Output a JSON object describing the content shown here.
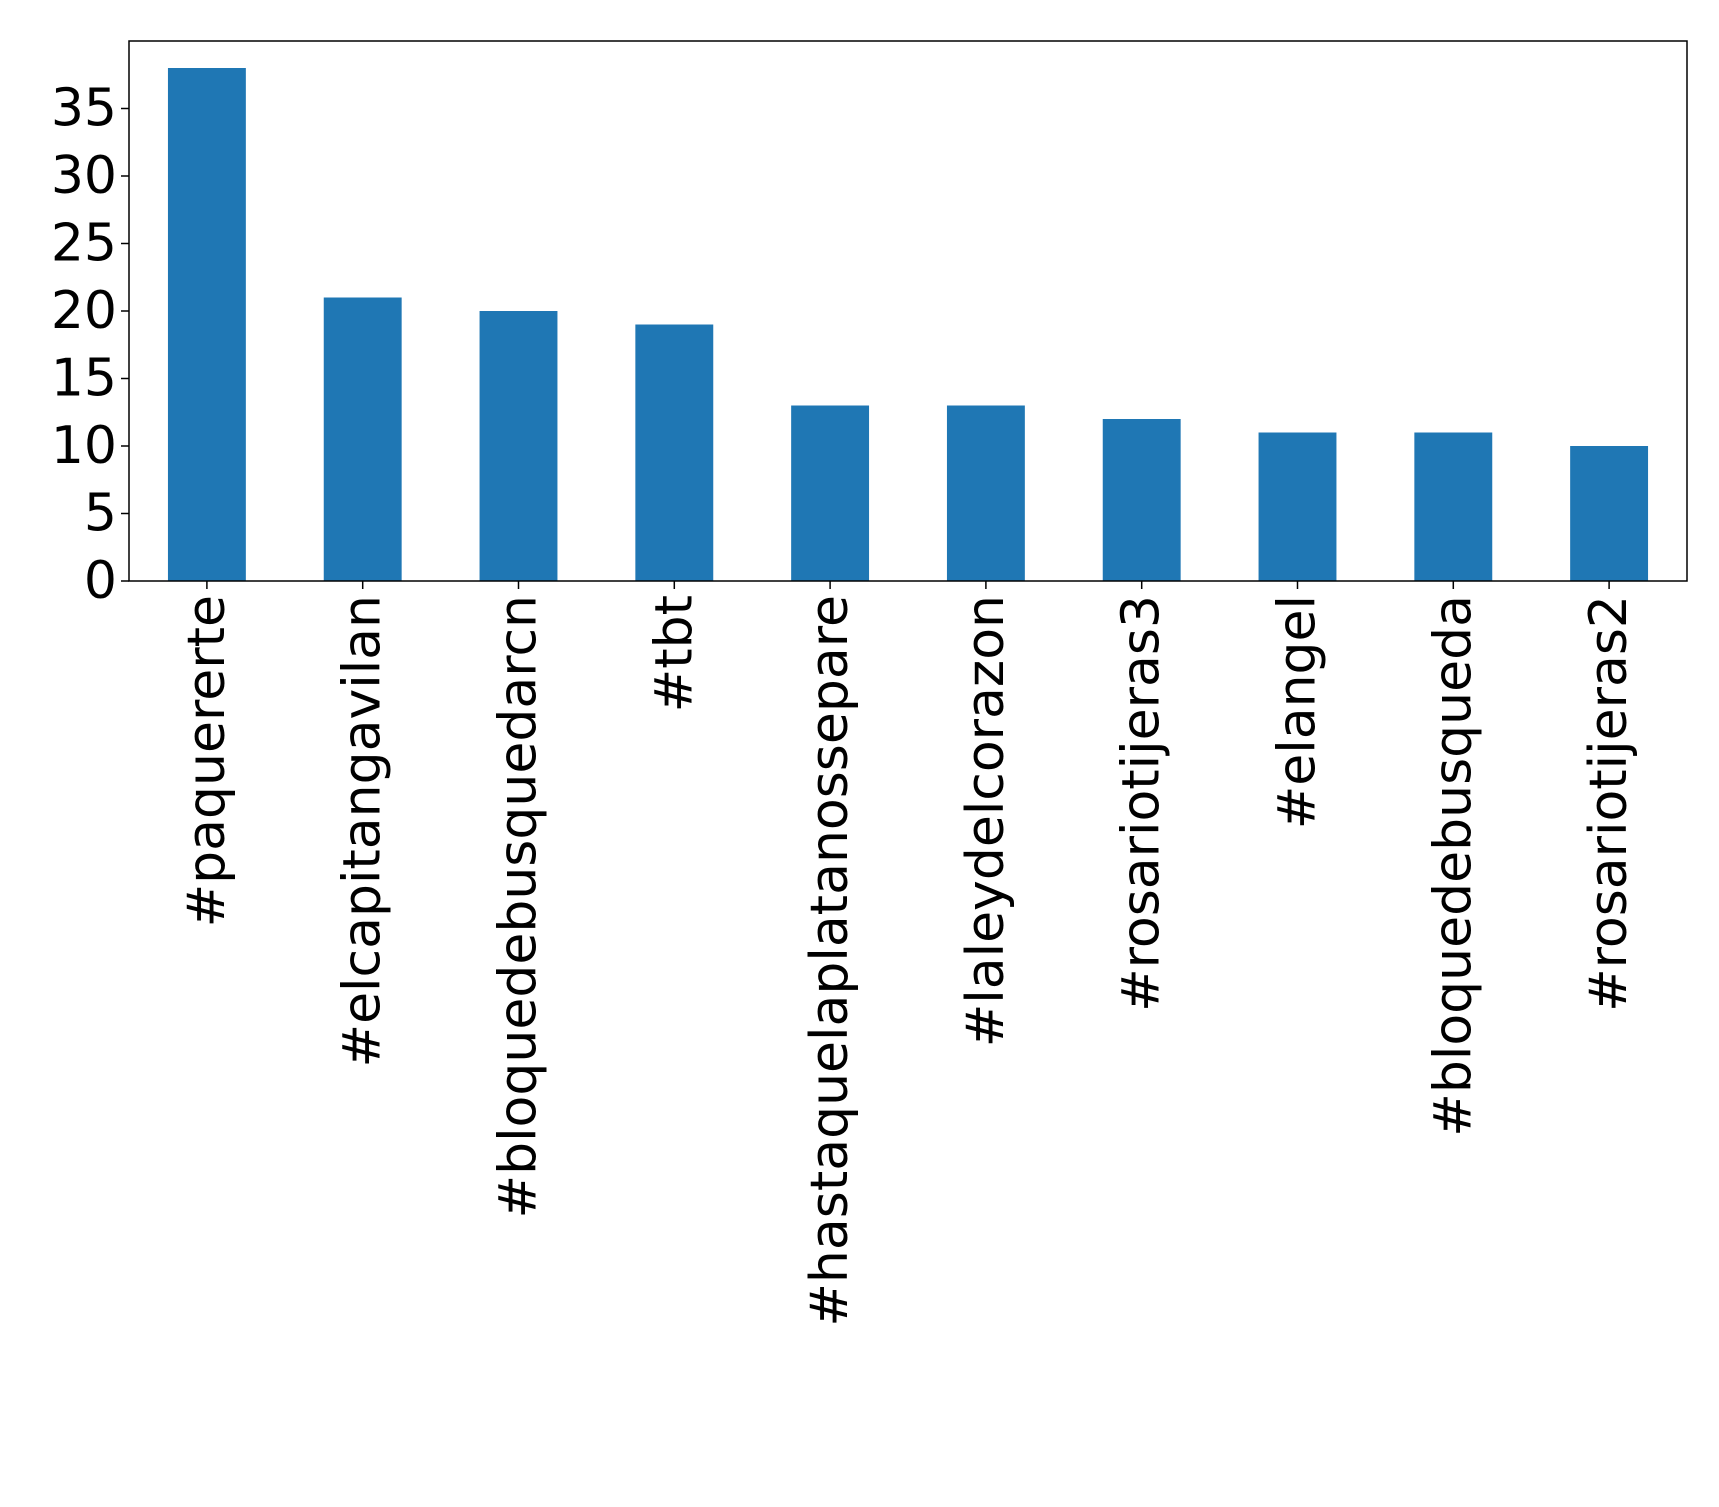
{
  "chart_data": {
    "type": "bar",
    "title": "",
    "xlabel": "",
    "ylabel": "",
    "categories": [
      "#paquererte",
      "#elcapitangavilan",
      "#bloquedebusquedarcn",
      "#tbt",
      "#hastaquelaplatanossepare",
      "#laleydelcorazon",
      "#rosariotijeras3",
      "#elangel",
      "#bloquedebusqueda",
      "#rosariotijeras2"
    ],
    "values": [
      38,
      21,
      20,
      19,
      13,
      13,
      12,
      11,
      11,
      10
    ],
    "ylim": [
      0,
      40
    ],
    "yticks": [
      0,
      5,
      10,
      15,
      20,
      25,
      30,
      35
    ],
    "bar_color": "#1f77b4",
    "grid": false,
    "legend": "none"
  }
}
